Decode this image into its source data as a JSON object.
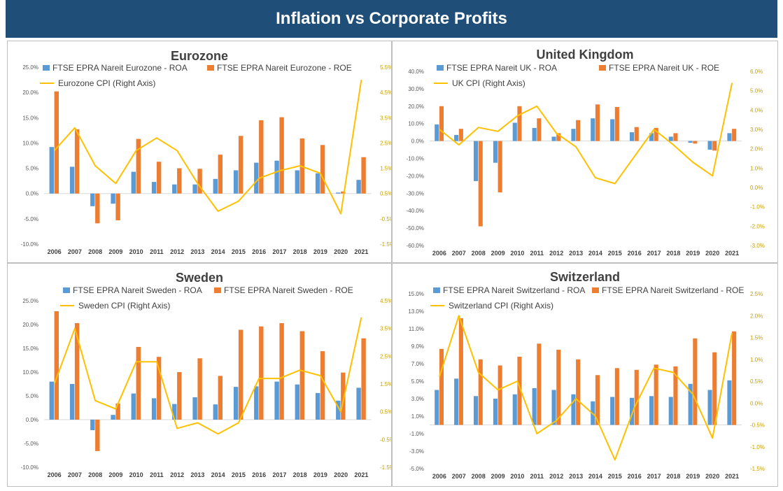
{
  "header": {
    "title": "Inflation vs Corporate Profits"
  },
  "colors": {
    "roa": "#5b9bd5",
    "roe": "#ed7d31",
    "cpi": "#ffc000",
    "header_bg": "#1f4e79"
  },
  "chart_data": [
    {
      "type": "bar",
      "title": "Eurozone",
      "categories": [
        "2006",
        "2007",
        "2008",
        "2009",
        "2010",
        "2011",
        "2012",
        "2013",
        "2014",
        "2015",
        "2016",
        "2017",
        "2018",
        "2019",
        "2020",
        "2021"
      ],
      "series": [
        {
          "name": "FTSE EPRA Nareit Eurozone - ROA",
          "type": "bar",
          "axis": "left",
          "values": [
            9.2,
            5.3,
            -2.5,
            -2.0,
            4.3,
            2.3,
            1.8,
            1.8,
            2.9,
            4.6,
            6.1,
            6.5,
            4.6,
            4.0,
            0.2,
            2.7
          ]
        },
        {
          "name": "FTSE EPRA Nareit Eurozone - ROE",
          "type": "bar",
          "axis": "left",
          "values": [
            20.2,
            12.7,
            -5.9,
            -5.3,
            10.8,
            6.3,
            5.0,
            4.9,
            7.7,
            11.4,
            14.5,
            15.1,
            10.9,
            9.6,
            0.4,
            7.2
          ]
        },
        {
          "name": "Eurozone CPI (Right Axis)",
          "type": "line",
          "axis": "right",
          "values": [
            2.2,
            3.1,
            1.6,
            0.9,
            2.2,
            2.7,
            2.2,
            0.9,
            -0.2,
            0.2,
            1.1,
            1.4,
            1.6,
            1.3,
            -0.3,
            5.0
          ]
        }
      ],
      "yticks": [
        "25.0%",
        "20.0%",
        "15.0%",
        "10.0%",
        "5.0%",
        "0.0%",
        "-5.0%",
        "-10.0%"
      ],
      "y2ticks": [
        "5.5%",
        "4.5%",
        "3.5%",
        "2.5%",
        "1.5%",
        "0.5%",
        "-0.5%",
        "-1.5%"
      ],
      "ylim": [
        -10,
        25
      ],
      "y2lim": [
        -1.5,
        5.5
      ]
    },
    {
      "type": "bar",
      "title": "United Kingdom",
      "categories": [
        "2006",
        "2007",
        "2008",
        "2009",
        "2010",
        "2011",
        "2012",
        "2013",
        "2014",
        "2015",
        "2016",
        "2017",
        "2018",
        "2019",
        "2020",
        "2021"
      ],
      "series": [
        {
          "name": "FTSE EPRA Nareit UK - ROA",
          "type": "bar",
          "axis": "left",
          "values": [
            9.5,
            3.5,
            -23.0,
            -12.5,
            10.5,
            7.5,
            2.5,
            7.0,
            13.0,
            12.5,
            5.0,
            4.5,
            2.5,
            -1.0,
            -5.0,
            4.5
          ]
        },
        {
          "name": "FTSE EPRA Nareit UK - ROE",
          "type": "bar",
          "axis": "left",
          "values": [
            20.0,
            7.0,
            -49.0,
            -29.5,
            20.0,
            13.0,
            4.5,
            12.0,
            21.0,
            19.5,
            8.0,
            7.5,
            4.5,
            -1.5,
            -5.5,
            7.0
          ]
        },
        {
          "name": "UK CPI (Right Axis)",
          "type": "line",
          "axis": "right",
          "values": [
            3.0,
            2.2,
            3.1,
            2.9,
            3.7,
            4.2,
            2.8,
            2.1,
            0.5,
            0.2,
            1.6,
            3.0,
            2.2,
            1.3,
            0.6,
            5.4
          ]
        }
      ],
      "yticks": [
        "40.0%",
        "30.0%",
        "20.0%",
        "10.0%",
        "0.0%",
        "-10.0%",
        "-20.0%",
        "-30.0%",
        "-40.0%",
        "-50.0%",
        "-60.0%"
      ],
      "y2ticks": [
        "6.0%",
        "5.0%",
        "4.0%",
        "3.0%",
        "2.0%",
        "1.0%",
        "0.0%",
        "-1.0%",
        "-2.0%",
        "-3.0%"
      ],
      "ylim": [
        -60,
        40
      ],
      "y2lim": [
        -3,
        6
      ]
    },
    {
      "type": "bar",
      "title": "Sweden",
      "categories": [
        "2006",
        "2007",
        "2008",
        "2009",
        "2010",
        "2011",
        "2012",
        "2013",
        "2014",
        "2015",
        "2016",
        "2017",
        "2018",
        "2019",
        "2020",
        "2021"
      ],
      "series": [
        {
          "name": "FTSE EPRA Nareit Sweden - ROA",
          "type": "bar",
          "axis": "left",
          "values": [
            8.0,
            7.5,
            -2.2,
            1.0,
            5.5,
            4.5,
            3.3,
            4.7,
            3.2,
            6.9,
            7.0,
            8.0,
            7.4,
            5.6,
            4.0,
            6.7
          ]
        },
        {
          "name": "FTSE EPRA Nareit Sweden - ROE",
          "type": "bar",
          "axis": "left",
          "values": [
            22.8,
            20.3,
            -6.6,
            3.4,
            15.3,
            13.2,
            10.0,
            12.9,
            9.2,
            18.9,
            19.6,
            20.3,
            18.6,
            14.4,
            9.9,
            17.1
          ]
        },
        {
          "name": "Sweden CPI (Right Axis)",
          "type": "line",
          "axis": "right",
          "values": [
            1.5,
            3.5,
            0.9,
            0.6,
            2.3,
            2.3,
            -0.1,
            0.1,
            -0.3,
            0.1,
            1.7,
            1.7,
            2.0,
            1.8,
            0.5,
            3.9
          ]
        }
      ],
      "yticks": [
        "25.0%",
        "20.0%",
        "15.0%",
        "10.0%",
        "5.0%",
        "0.0%",
        "-5.0%",
        "-10.0%"
      ],
      "y2ticks": [
        "4.5%",
        "3.5%",
        "2.5%",
        "1.5%",
        "0.5%",
        "-0.5%",
        "-1.5%"
      ],
      "ylim": [
        -10,
        25
      ],
      "y2lim": [
        -1.5,
        4.5
      ]
    },
    {
      "type": "bar",
      "title": "Switzerland",
      "categories": [
        "2006",
        "2007",
        "2008",
        "2009",
        "2010",
        "2011",
        "2012",
        "2013",
        "2014",
        "2015",
        "2016",
        "2017",
        "2018",
        "2019",
        "2020",
        "2021"
      ],
      "series": [
        {
          "name": "FTSE EPRA Nareit Switzerland - ROA",
          "type": "bar",
          "axis": "left",
          "values": [
            4.0,
            5.3,
            3.3,
            3.0,
            3.5,
            4.2,
            4.0,
            3.5,
            2.7,
            3.2,
            3.1,
            3.3,
            3.2,
            4.7,
            4.0,
            5.1
          ]
        },
        {
          "name": "FTSE EPRA Nareit Switzerland - ROE",
          "type": "bar",
          "axis": "left",
          "values": [
            8.7,
            12.2,
            7.5,
            6.8,
            7.8,
            9.3,
            8.6,
            7.5,
            5.7,
            6.5,
            6.3,
            6.9,
            6.7,
            9.9,
            8.3,
            10.7
          ]
        },
        {
          "name": "Switzerland CPI (Right Axis)",
          "type": "line",
          "axis": "right",
          "values": [
            0.6,
            2.0,
            0.7,
            0.3,
            0.5,
            -0.7,
            -0.4,
            0.1,
            -0.3,
            -1.3,
            -0.1,
            0.8,
            0.7,
            0.2,
            -0.8,
            1.6
          ]
        }
      ],
      "yticks": [
        "15.0%",
        "13.0%",
        "11.0%",
        "9.0%",
        "7.0%",
        "5.0%",
        "3.0%",
        "1.0%",
        "-1.0%",
        "-3.0%",
        "-5.0%"
      ],
      "y2ticks": [
        "2.5%",
        "2.0%",
        "1.5%",
        "1.0%",
        "0.5%",
        "0.0%",
        "-0.5%",
        "-1.0%",
        "-1.5%"
      ],
      "ylim": [
        -5,
        15
      ],
      "y2lim": [
        -1.5,
        2.5
      ]
    }
  ]
}
